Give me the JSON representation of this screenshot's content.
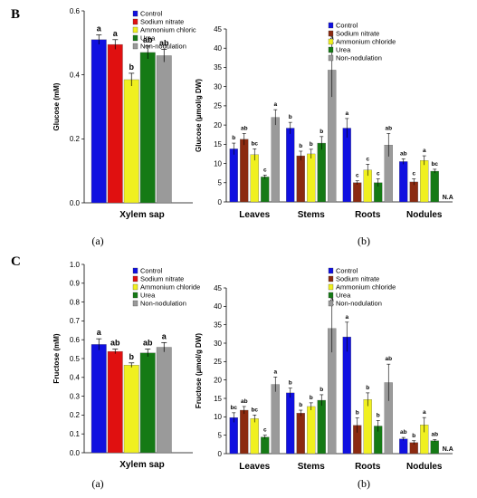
{
  "panels": [
    {
      "letter": "B",
      "left": {
        "sub": "(a)",
        "ylabel": "Glucose (mM)",
        "category": "Xylem sap",
        "ylim": [
          0,
          0.6
        ],
        "ticks": [
          "0.0",
          "0.2",
          "0.4",
          "0.6"
        ]
      },
      "right": {
        "sub": "(b)",
        "ylabel": "Glucose (μmol/g DW)",
        "ylim": [
          0,
          45
        ],
        "ticks": [
          "0",
          "5",
          "10",
          "15",
          "20",
          "25",
          "30",
          "35",
          "40",
          "45"
        ]
      }
    },
    {
      "letter": "C",
      "left": {
        "sub": "(a)",
        "ylabel": "Fructose (mM)",
        "category": "Xylem sap",
        "ylim": [
          0,
          1.0
        ],
        "ticks": [
          "0.0",
          "0.1",
          "0.2",
          "0.3",
          "0.4",
          "0.5",
          "0.6",
          "0.7",
          "0.8",
          "0.9",
          "1.0"
        ]
      },
      "right": {
        "sub": "(b)",
        "ylabel": "Fructose (μmol/g DW)",
        "ylim": [
          0,
          45
        ],
        "ticks": [
          "0",
          "5",
          "10",
          "15",
          "20",
          "25",
          "30",
          "35",
          "40",
          "45"
        ]
      }
    }
  ],
  "legend": [
    "Control",
    "Sodium nitrate",
    "Ammonium chloride",
    "Urea",
    "Non-nodulation"
  ],
  "legend_left_first": [
    "Control",
    "Sodium nitrate",
    "Ammonium chloric",
    "Urea",
    "Non-nodulation"
  ],
  "colors": {
    "Control": "#1010e0",
    "Sodium nitrate": "#8b2a10",
    "Ammonium chloride": "#f0f020",
    "Urea": "#157a15",
    "Non-nodulation": "#9a9a9a"
  },
  "left_colors": {
    "Control": "#1010e0",
    "Sodium nitrate": "#e01010",
    "Ammonium chloride": "#f0f020",
    "Urea": "#157a15",
    "Non-nodulation": "#9a9a9a"
  },
  "na_label": "N.A",
  "chart_data": [
    {
      "type": "bar",
      "ylabel": "Glucose (mM)",
      "categories": [
        "Xylem sap"
      ],
      "ylim": [
        0,
        0.6
      ],
      "series": [
        {
          "name": "Control",
          "values": [
            0.51
          ],
          "errors": [
            0.015
          ],
          "letters": [
            "a"
          ]
        },
        {
          "name": "Sodium nitrate",
          "values": [
            0.495
          ],
          "errors": [
            0.015
          ],
          "letters": [
            "a"
          ]
        },
        {
          "name": "Ammonium chloric",
          "values": [
            0.385
          ],
          "errors": [
            0.02
          ],
          "letters": [
            "b"
          ]
        },
        {
          "name": "Urea",
          "values": [
            0.47
          ],
          "errors": [
            0.02
          ],
          "letters": [
            "ab"
          ]
        },
        {
          "name": "Non-nodulation",
          "values": [
            0.46
          ],
          "errors": [
            0.02
          ],
          "letters": [
            "ab"
          ]
        }
      ]
    },
    {
      "type": "bar",
      "ylabel": "Glucose (μmol/g DW)",
      "categories": [
        "Leaves",
        "Stems",
        "Roots",
        "Nodules"
      ],
      "ylim": [
        0,
        45
      ],
      "series": [
        {
          "name": "Control",
          "values": [
            13.8,
            19.2,
            19.2,
            10.5
          ],
          "errors": [
            1.5,
            1.5,
            2.5,
            0.7
          ],
          "letters": [
            "b",
            "b",
            "a",
            "ab"
          ]
        },
        {
          "name": "Sodium nitrate",
          "values": [
            16.3,
            12.0,
            5.0,
            5.2
          ],
          "errors": [
            1.5,
            1.2,
            0.5,
            0.8
          ],
          "letters": [
            "ab",
            "b",
            "c",
            "c"
          ]
        },
        {
          "name": "Ammonium chloride",
          "values": [
            12.3,
            12.5,
            8.3,
            10.8
          ],
          "errors": [
            1.5,
            1.2,
            1.5,
            1.2
          ],
          "letters": [
            "bc",
            "b",
            "c",
            "a"
          ]
        },
        {
          "name": "Urea",
          "values": [
            6.5,
            15.3,
            5.0,
            8.0
          ],
          "errors": [
            0.5,
            1.7,
            1.0,
            0.5
          ],
          "letters": [
            "c",
            "b",
            "c",
            "bc"
          ]
        },
        {
          "name": "Non-nodulation",
          "values": [
            22.0,
            34.3,
            14.8,
            null
          ],
          "errors": [
            2.0,
            7.0,
            3.0,
            null
          ],
          "letters": [
            "a",
            "a",
            "ab",
            "N.A"
          ]
        }
      ]
    },
    {
      "type": "bar",
      "ylabel": "Fructose (mM)",
      "categories": [
        "Xylem sap"
      ],
      "ylim": [
        0,
        1.0
      ],
      "series": [
        {
          "name": "Control",
          "values": [
            0.575
          ],
          "errors": [
            0.03
          ],
          "letters": [
            "a"
          ]
        },
        {
          "name": "Sodium nitrate",
          "values": [
            0.538
          ],
          "errors": [
            0.012
          ],
          "letters": [
            "ab"
          ]
        },
        {
          "name": "Ammonium chloride",
          "values": [
            0.465
          ],
          "errors": [
            0.012
          ],
          "letters": [
            "b"
          ]
        },
        {
          "name": "Urea",
          "values": [
            0.53
          ],
          "errors": [
            0.02
          ],
          "letters": [
            "ab"
          ]
        },
        {
          "name": "Non-nodulation",
          "values": [
            0.56
          ],
          "errors": [
            0.025
          ],
          "letters": [
            "a"
          ]
        }
      ]
    },
    {
      "type": "bar",
      "ylabel": "Fructose (μmol/g DW)",
      "categories": [
        "Leaves",
        "Stems",
        "Roots",
        "Nodules"
      ],
      "ylim": [
        0,
        45
      ],
      "series": [
        {
          "name": "Control",
          "values": [
            9.8,
            16.5,
            31.7,
            4.0
          ],
          "errors": [
            1.3,
            1.3,
            4.0,
            0.4
          ],
          "letters": [
            "bc",
            "b",
            "a",
            "ab"
          ]
        },
        {
          "name": "Sodium nitrate",
          "values": [
            11.8,
            11.0,
            7.7,
            3.0
          ],
          "errors": [
            1.0,
            0.8,
            2.0,
            0.5
          ],
          "letters": [
            "ab",
            "b",
            "b",
            "b"
          ]
        },
        {
          "name": "Ammonium chloride",
          "values": [
            9.5,
            12.8,
            14.7,
            7.8
          ],
          "errors": [
            1.0,
            1.0,
            1.8,
            2.0
          ],
          "letters": [
            "bc",
            "b",
            "b",
            "a"
          ]
        },
        {
          "name": "Urea",
          "values": [
            4.5,
            14.5,
            7.5,
            3.5
          ],
          "errors": [
            0.5,
            1.5,
            1.5,
            0.3
          ],
          "letters": [
            "c",
            "b",
            "b",
            "ab"
          ]
        },
        {
          "name": "Non-nodulation",
          "values": [
            18.8,
            34.0,
            19.3,
            null
          ],
          "errors": [
            2.0,
            6.5,
            5.0,
            null
          ],
          "letters": [
            "a",
            "a",
            "ab",
            "N.A"
          ]
        }
      ]
    }
  ]
}
